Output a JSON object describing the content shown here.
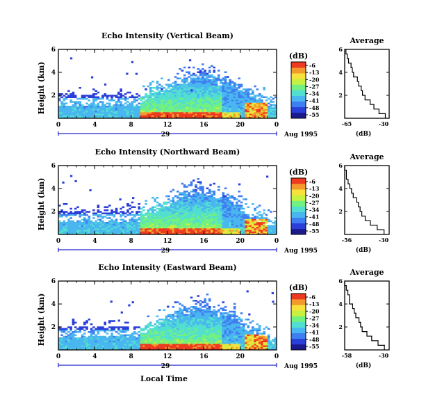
{
  "figure": {
    "x_axis_label": "Local Time",
    "date_day": "29",
    "date_month_year": "Aug 1995",
    "colorbar_unit": "(dB)",
    "profile_xlabel": "(dB)"
  },
  "colors": {
    "scale": [
      "#1a1a8c",
      "#2a3fd8",
      "#3f7ef0",
      "#49b6ef",
      "#52dfd0",
      "#72f080",
      "#c8f040",
      "#f6e23a",
      "#f49a2c",
      "#ee3a20"
    ],
    "axis": "#000000",
    "date_line": "#2222cc"
  },
  "chart_data": [
    {
      "type": "heatmap",
      "title": "Echo Intensity (Vertical Beam)",
      "ylabel": "Height (km)",
      "xlim": [
        0,
        24
      ],
      "ylim": [
        0,
        6
      ],
      "x_ticks": [
        "0",
        "4",
        "8",
        "12",
        "16",
        "20",
        "0"
      ],
      "y_ticks": [
        "2",
        "4",
        "6"
      ],
      "colorbar_ticks": [
        "-6",
        "-13",
        "-20",
        "-27",
        "-34",
        "-41",
        "-48",
        "-55"
      ],
      "profile": {
        "title": "Average",
        "xlim": [
          -65,
          -30
        ],
        "x_ticks": [
          "-65",
          "-30"
        ],
        "y_ticks": [
          "2",
          "4",
          "6"
        ],
        "heights_km": [
          0.4,
          0.8,
          1.2,
          1.6,
          2.0,
          2.4,
          2.8,
          3.2,
          3.6,
          4.0,
          4.4,
          4.8,
          5.2,
          5.6,
          6.0
        ],
        "values_db": [
          -33,
          -38,
          -42,
          -45,
          -49,
          -51,
          -52,
          -54,
          -55,
          -58,
          -59,
          -60,
          -62,
          -63,
          -64
        ]
      }
    },
    {
      "type": "heatmap",
      "title": "Echo Intensity (Northward Beam)",
      "ylabel": "Height (km)",
      "xlim": [
        0,
        24
      ],
      "ylim": [
        0,
        6
      ],
      "x_ticks": [
        "0",
        "4",
        "8",
        "12",
        "16",
        "20",
        "0"
      ],
      "y_ticks": [
        "2",
        "4",
        "6"
      ],
      "colorbar_ticks": [
        "-6",
        "-13",
        "-20",
        "-27",
        "-34",
        "-41",
        "-48",
        "-55"
      ],
      "profile": {
        "title": "Average",
        "xlim": [
          -56,
          -30
        ],
        "x_ticks": [
          "-56",
          "-30"
        ],
        "y_ticks": [
          "2",
          "4",
          "6"
        ],
        "heights_km": [
          0.4,
          0.8,
          1.2,
          1.6,
          2.0,
          2.4,
          2.8,
          3.2,
          3.6,
          4.0,
          4.4,
          4.8,
          5.2,
          5.6,
          6.0
        ],
        "values_db": [
          -33,
          -37,
          -41,
          -44,
          -46,
          -47,
          -48,
          -49,
          -51,
          -52,
          -53,
          -54,
          -55,
          -55,
          -56
        ]
      }
    },
    {
      "type": "heatmap",
      "title": "Echo Intensity (Eastward Beam)",
      "ylabel": "Height (km)",
      "xlim": [
        0,
        24
      ],
      "ylim": [
        0,
        6
      ],
      "x_ticks": [
        "0",
        "4",
        "8",
        "12",
        "16",
        "20",
        "0"
      ],
      "y_ticks": [
        "2",
        "4",
        "6"
      ],
      "colorbar_ticks": [
        "-6",
        "-13",
        "-20",
        "-27",
        "-34",
        "-41",
        "-48",
        "-55"
      ],
      "profile": {
        "title": "Average",
        "xlim": [
          -58,
          -30
        ],
        "x_ticks": [
          "-58",
          "-30"
        ],
        "y_ticks": [
          "2",
          "4",
          "6"
        ],
        "heights_km": [
          0.4,
          0.8,
          1.2,
          1.6,
          2.0,
          2.4,
          2.8,
          3.2,
          3.6,
          4.0,
          4.4,
          4.8,
          5.2,
          5.6,
          6.0
        ],
        "values_db": [
          -33,
          -37,
          -41,
          -44,
          -47,
          -48,
          -49,
          -51,
          -52,
          -53,
          -55,
          -55,
          -56,
          -57,
          -58
        ]
      }
    }
  ]
}
